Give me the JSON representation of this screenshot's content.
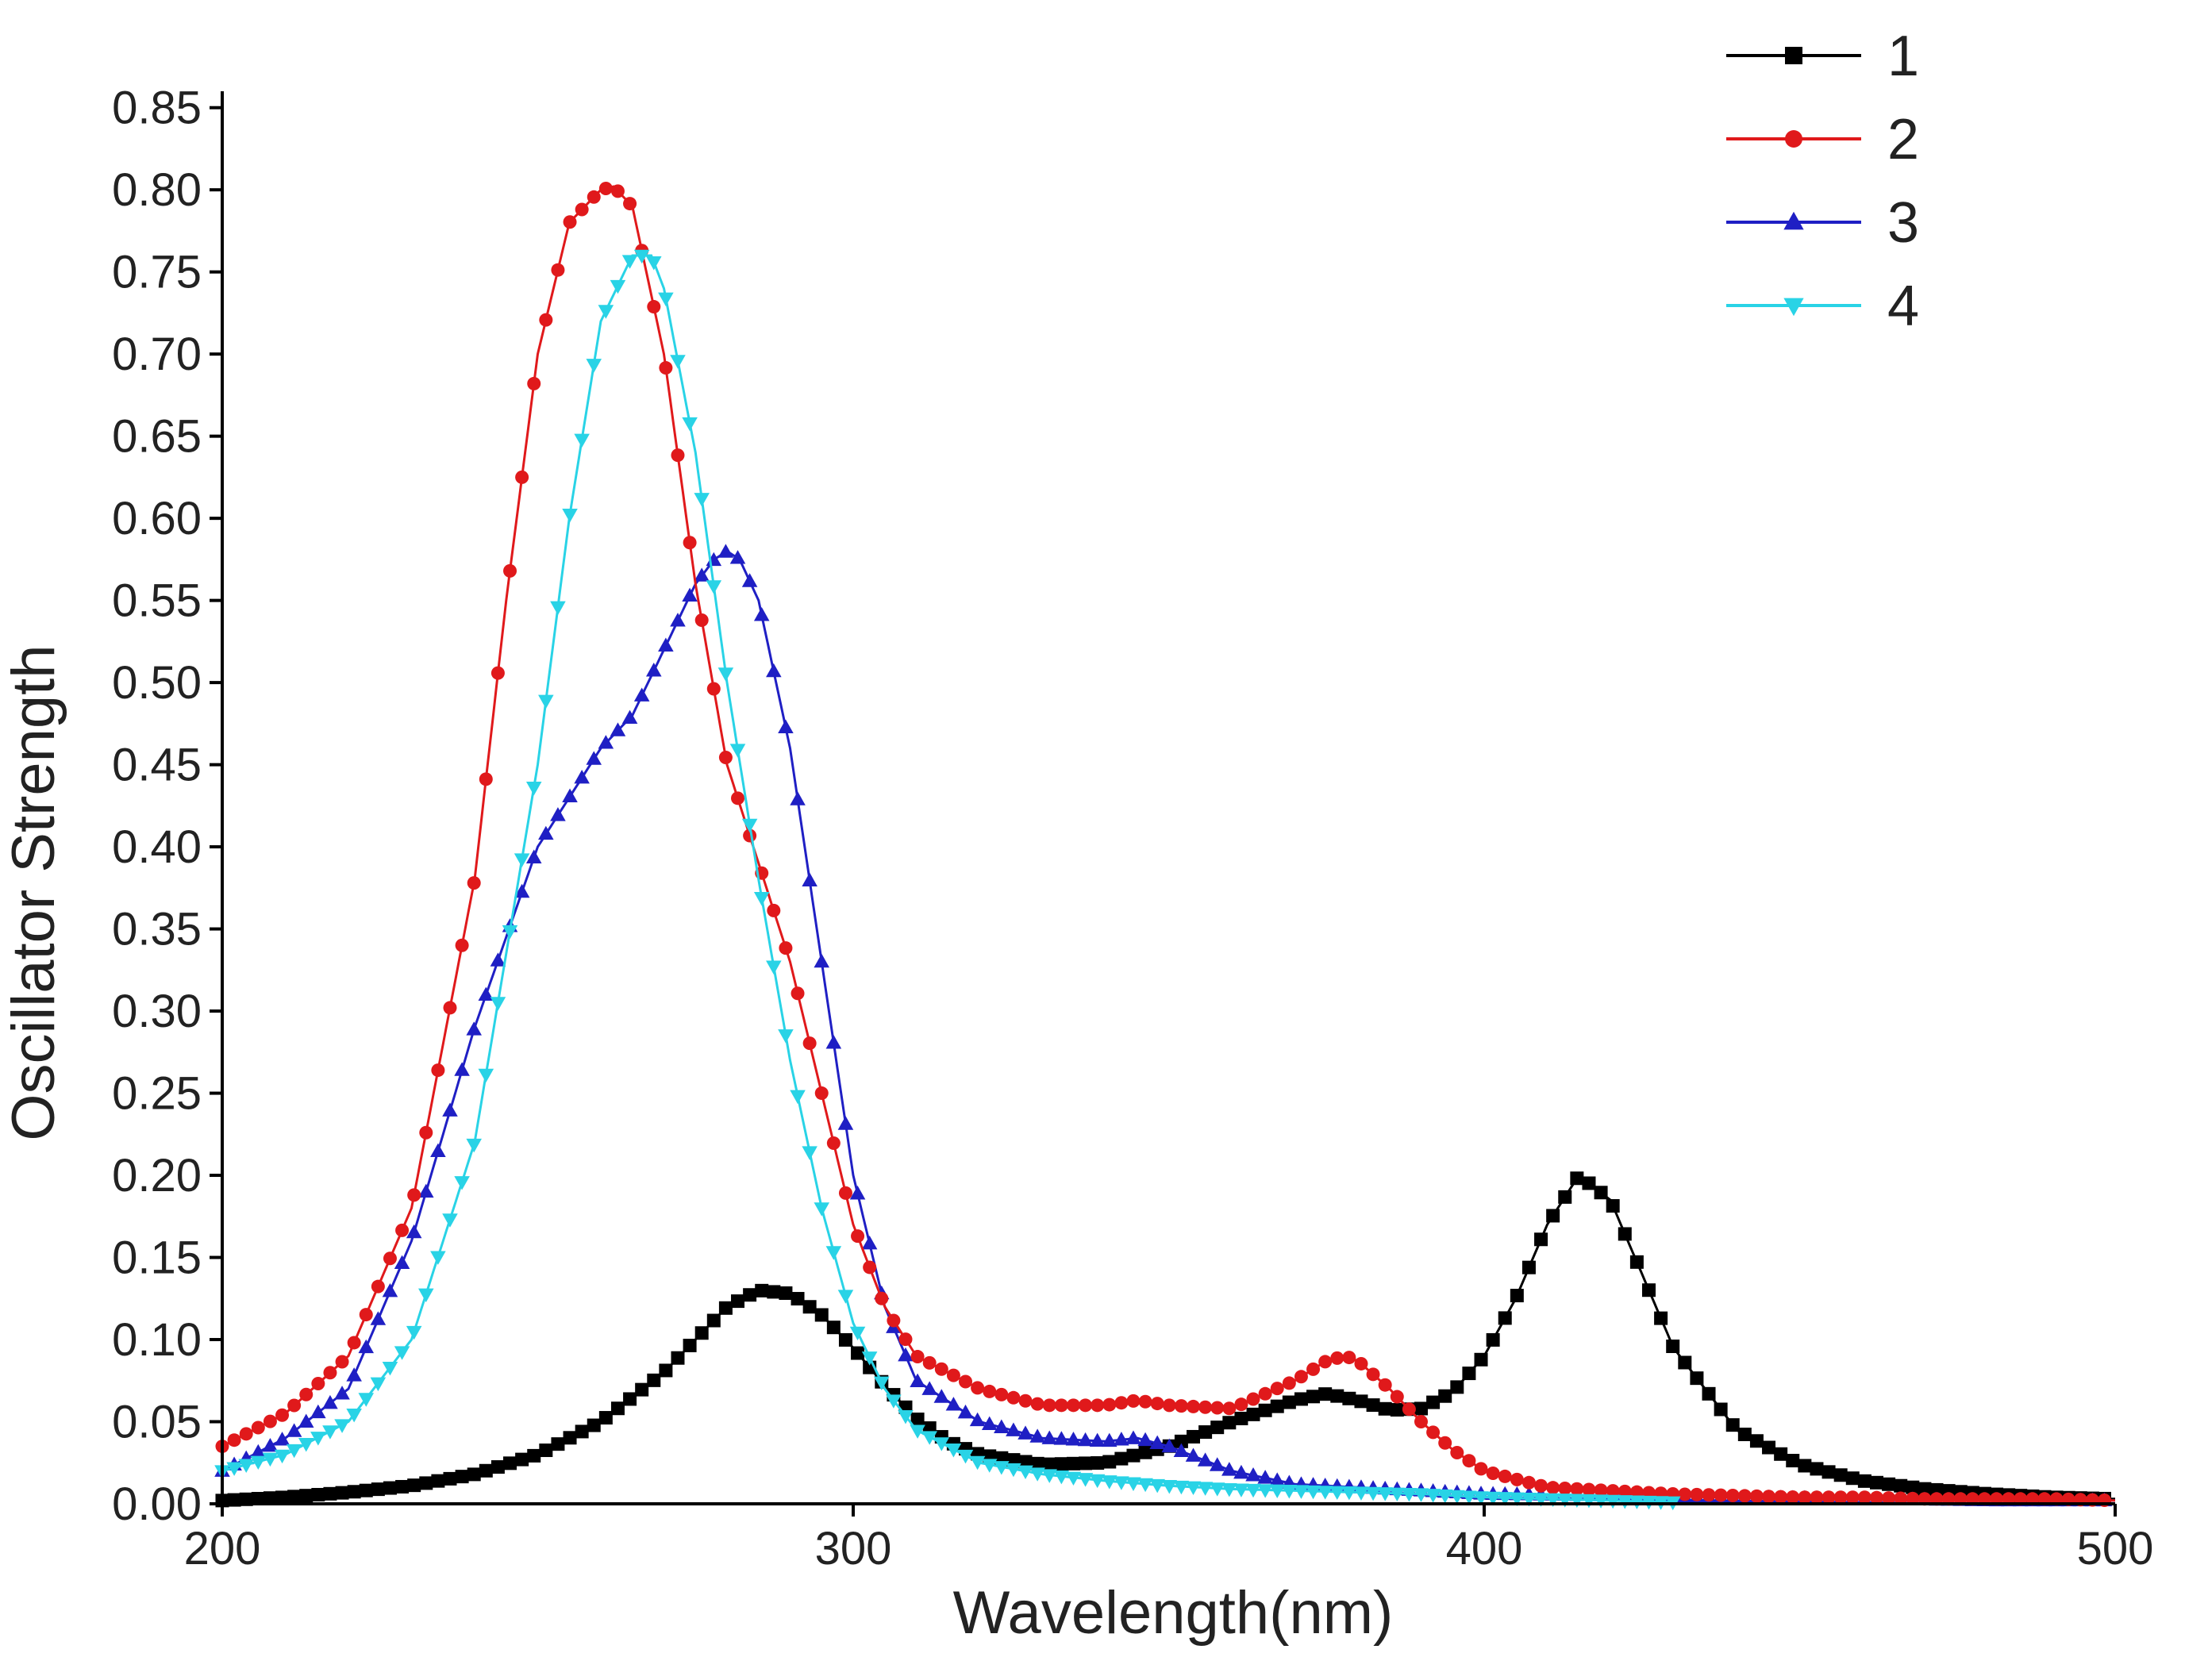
{
  "chart_data": {
    "type": "line",
    "title": "",
    "xlabel": "Wavelength(nm)",
    "ylabel": "Oscillator Strength",
    "xlim": [
      200,
      500
    ],
    "ylim": [
      0,
      0.86
    ],
    "xticks": [
      200,
      300,
      400,
      500
    ],
    "xtick_labels": [
      "200",
      "300",
      "400",
      "500"
    ],
    "yticks": [
      0,
      0.05,
      0.1,
      0.15,
      0.2,
      0.25,
      0.3,
      0.35,
      0.4,
      0.45,
      0.5,
      0.55,
      0.6,
      0.65,
      0.7,
      0.75,
      0.8,
      0.85
    ],
    "ytick_labels": [
      "0.00",
      "0.05",
      "0.10",
      "0.15",
      "0.20",
      "0.25",
      "0.30",
      "0.35",
      "0.40",
      "0.45",
      "0.50",
      "0.55",
      "0.60",
      "0.65",
      "0.70",
      "0.75",
      "0.80",
      "0.85"
    ],
    "grid": false,
    "legend_position": "top-right",
    "series": [
      {
        "name": "1",
        "color": "#000000",
        "marker": "square",
        "x": [
          200,
          210,
          220,
          230,
          240,
          250,
          260,
          270,
          275,
          280,
          285,
          290,
          295,
          300,
          305,
          310,
          315,
          320,
          330,
          340,
          350,
          360,
          370,
          375,
          380,
          385,
          390,
          395,
          400,
          405,
          410,
          415,
          420,
          425,
          430,
          440,
          450,
          460,
          470,
          480,
          490,
          500
        ],
        "y": [
          0.002,
          0.004,
          0.007,
          0.011,
          0.018,
          0.03,
          0.05,
          0.08,
          0.1,
          0.12,
          0.13,
          0.128,
          0.115,
          0.095,
          0.072,
          0.052,
          0.038,
          0.03,
          0.024,
          0.025,
          0.035,
          0.05,
          0.063,
          0.067,
          0.063,
          0.057,
          0.058,
          0.068,
          0.09,
          0.125,
          0.17,
          0.2,
          0.185,
          0.14,
          0.095,
          0.045,
          0.024,
          0.014,
          0.009,
          0.006,
          0.004,
          0.003
        ]
      },
      {
        "name": "2",
        "color": "#e0191b",
        "marker": "circle",
        "x": [
          200,
          210,
          220,
          230,
          240,
          245,
          250,
          255,
          260,
          262,
          265,
          270,
          275,
          280,
          285,
          290,
          295,
          300,
          305,
          310,
          320,
          330,
          340,
          345,
          350,
          360,
          370,
          375,
          378,
          380,
          385,
          390,
          395,
          400,
          410,
          420,
          430,
          440,
          450,
          460,
          470,
          480,
          490,
          500
        ],
        "y": [
          0.035,
          0.055,
          0.09,
          0.18,
          0.38,
          0.55,
          0.7,
          0.78,
          0.8,
          0.802,
          0.79,
          0.7,
          0.56,
          0.45,
          0.39,
          0.33,
          0.25,
          0.17,
          0.12,
          0.09,
          0.07,
          0.06,
          0.06,
          0.063,
          0.06,
          0.058,
          0.075,
          0.087,
          0.09,
          0.087,
          0.07,
          0.05,
          0.033,
          0.02,
          0.01,
          0.008,
          0.006,
          0.005,
          0.004,
          0.004,
          0.003,
          0.003,
          0.003,
          0.002
        ]
      },
      {
        "name": "3",
        "color": "#1f1fc4",
        "marker": "triangle-up",
        "x": [
          200,
          210,
          220,
          230,
          240,
          250,
          260,
          265,
          270,
          275,
          278,
          280,
          282,
          285,
          290,
          295,
          300,
          305,
          310,
          320,
          330,
          340,
          345,
          350,
          360,
          370,
          380,
          390,
          400,
          420,
          440,
          460,
          480,
          500
        ],
        "y": [
          0.02,
          0.04,
          0.07,
          0.16,
          0.29,
          0.4,
          0.46,
          0.48,
          0.52,
          0.56,
          0.575,
          0.58,
          0.575,
          0.55,
          0.46,
          0.33,
          0.2,
          0.12,
          0.075,
          0.05,
          0.04,
          0.038,
          0.04,
          0.035,
          0.02,
          0.012,
          0.01,
          0.008,
          0.006,
          0.005,
          0.004,
          0.003,
          0.002,
          0.002
        ]
      },
      {
        "name": "4",
        "color": "#29d3e6",
        "marker": "triangle-down",
        "x": [
          200,
          210,
          220,
          230,
          240,
          250,
          255,
          260,
          265,
          268,
          270,
          275,
          280,
          285,
          290,
          295,
          300,
          305,
          310,
          320,
          330,
          340,
          350,
          360,
          370,
          380,
          390,
          400,
          410,
          420,
          430
        ],
        "y": [
          0.02,
          0.03,
          0.05,
          0.1,
          0.22,
          0.45,
          0.6,
          0.72,
          0.76,
          0.76,
          0.74,
          0.64,
          0.5,
          0.38,
          0.27,
          0.18,
          0.11,
          0.07,
          0.045,
          0.025,
          0.018,
          0.014,
          0.011,
          0.009,
          0.008,
          0.007,
          0.006,
          0.004,
          0.003,
          0.002,
          0.001
        ]
      }
    ]
  }
}
